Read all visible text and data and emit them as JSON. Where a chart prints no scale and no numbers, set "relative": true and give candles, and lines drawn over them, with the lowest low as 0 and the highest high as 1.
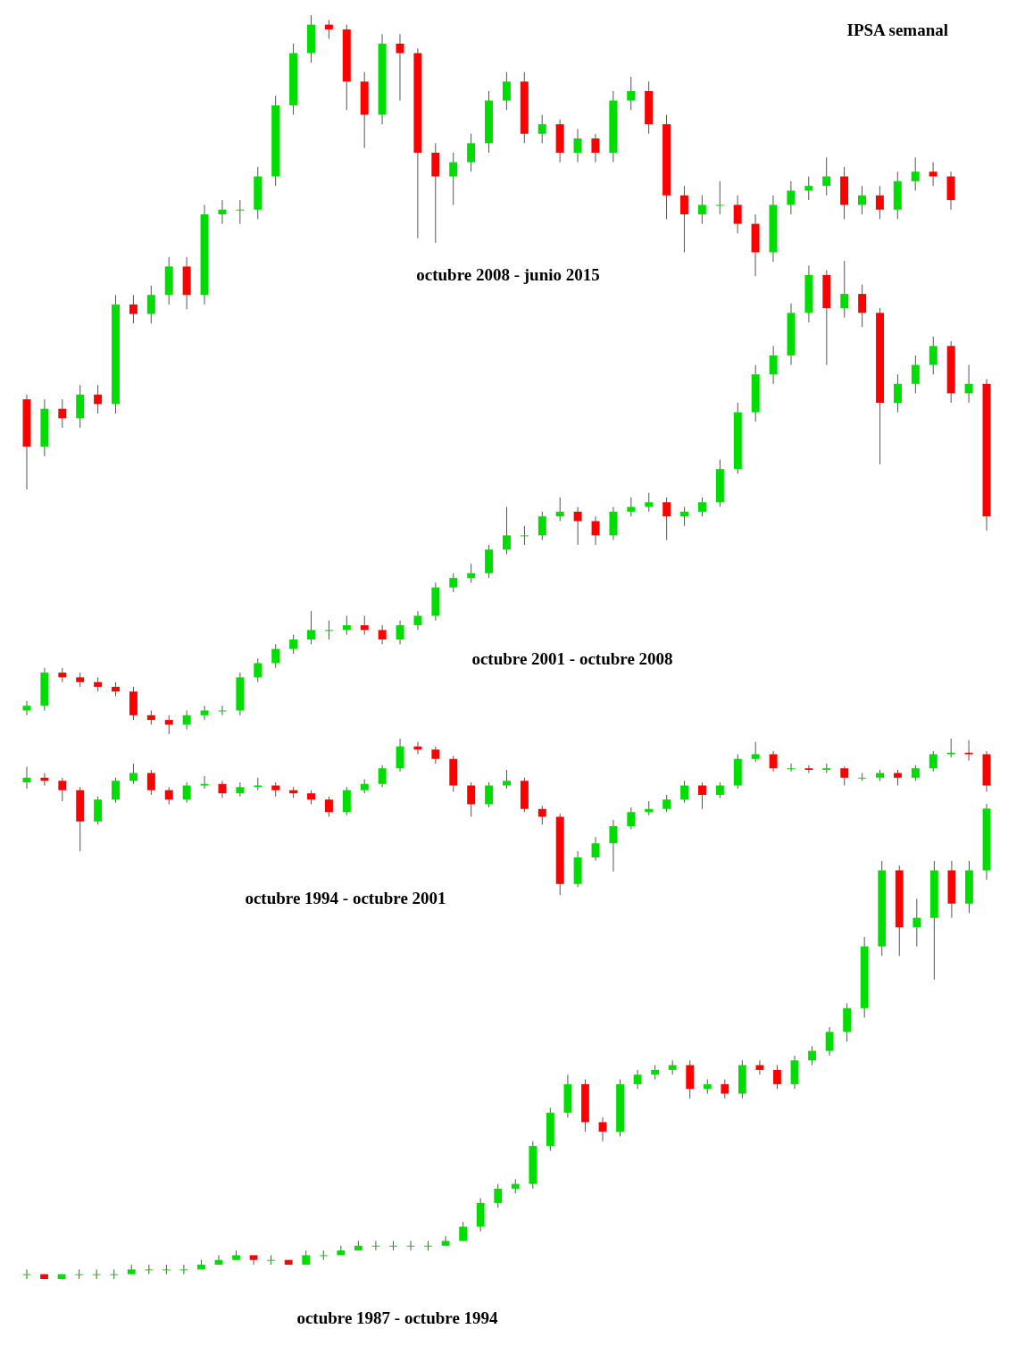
{
  "chart_data": [
    {
      "type": "candlestick",
      "title": "octubre 2008 - junio 2015",
      "annotations": [
        "IPSA semanal"
      ],
      "relative": true,
      "ohlc": [
        [
          0.19,
          0.2,
          0.0,
          0.09
        ],
        [
          0.09,
          0.19,
          0.07,
          0.17
        ],
        [
          0.17,
          0.19,
          0.13,
          0.15
        ],
        [
          0.15,
          0.22,
          0.13,
          0.2
        ],
        [
          0.2,
          0.22,
          0.16,
          0.18
        ],
        [
          0.18,
          0.41,
          0.16,
          0.39
        ],
        [
          0.39,
          0.41,
          0.35,
          0.37
        ],
        [
          0.37,
          0.43,
          0.35,
          0.41
        ],
        [
          0.41,
          0.49,
          0.39,
          0.47
        ],
        [
          0.47,
          0.49,
          0.38,
          0.41
        ],
        [
          0.41,
          0.6,
          0.39,
          0.58
        ],
        [
          0.58,
          0.61,
          0.56,
          0.59
        ],
        [
          0.59,
          0.61,
          0.56,
          0.59
        ],
        [
          0.59,
          0.68,
          0.57,
          0.66
        ],
        [
          0.66,
          0.83,
          0.64,
          0.81
        ],
        [
          0.81,
          0.94,
          0.79,
          0.92
        ],
        [
          0.92,
          1.0,
          0.9,
          0.98
        ],
        [
          0.98,
          0.99,
          0.95,
          0.97
        ],
        [
          0.97,
          0.98,
          0.8,
          0.86
        ],
        [
          0.86,
          0.88,
          0.72,
          0.79
        ],
        [
          0.79,
          0.96,
          0.77,
          0.94
        ],
        [
          0.94,
          0.96,
          0.82,
          0.92
        ],
        [
          0.92,
          0.93,
          0.53,
          0.71
        ],
        [
          0.71,
          0.73,
          0.52,
          0.66
        ],
        [
          0.66,
          0.71,
          0.6,
          0.69
        ],
        [
          0.69,
          0.75,
          0.67,
          0.73
        ],
        [
          0.73,
          0.84,
          0.71,
          0.82
        ],
        [
          0.82,
          0.88,
          0.8,
          0.86
        ],
        [
          0.86,
          0.88,
          0.73,
          0.75
        ],
        [
          0.75,
          0.79,
          0.73,
          0.77
        ],
        [
          0.77,
          0.78,
          0.69,
          0.71
        ],
        [
          0.71,
          0.76,
          0.69,
          0.74
        ],
        [
          0.74,
          0.75,
          0.69,
          0.71
        ],
        [
          0.71,
          0.84,
          0.69,
          0.82
        ],
        [
          0.82,
          0.87,
          0.8,
          0.84
        ],
        [
          0.84,
          0.86,
          0.75,
          0.77
        ],
        [
          0.77,
          0.79,
          0.57,
          0.62
        ],
        [
          0.62,
          0.64,
          0.5,
          0.58
        ],
        [
          0.58,
          0.62,
          0.56,
          0.6
        ],
        [
          0.6,
          0.65,
          0.58,
          0.6
        ],
        [
          0.6,
          0.62,
          0.54,
          0.56
        ],
        [
          0.56,
          0.58,
          0.45,
          0.5
        ],
        [
          0.5,
          0.62,
          0.48,
          0.6
        ],
        [
          0.6,
          0.65,
          0.58,
          0.63
        ],
        [
          0.63,
          0.66,
          0.61,
          0.64
        ],
        [
          0.64,
          0.7,
          0.62,
          0.66
        ],
        [
          0.66,
          0.68,
          0.57,
          0.6
        ],
        [
          0.6,
          0.64,
          0.58,
          0.62
        ],
        [
          0.62,
          0.64,
          0.57,
          0.59
        ],
        [
          0.59,
          0.67,
          0.57,
          0.65
        ],
        [
          0.65,
          0.7,
          0.63,
          0.67
        ],
        [
          0.67,
          0.69,
          0.64,
          0.66
        ],
        [
          0.66,
          0.67,
          0.59,
          0.61
        ]
      ]
    },
    {
      "type": "candlestick",
      "title": "octubre 2001 - octubre 2008",
      "relative": true,
      "ohlc": [
        [
          0.05,
          0.07,
          0.04,
          0.06
        ],
        [
          0.06,
          0.14,
          0.05,
          0.13
        ],
        [
          0.13,
          0.14,
          0.11,
          0.12
        ],
        [
          0.12,
          0.13,
          0.1,
          0.11
        ],
        [
          0.11,
          0.12,
          0.09,
          0.1
        ],
        [
          0.1,
          0.11,
          0.08,
          0.09
        ],
        [
          0.09,
          0.1,
          0.03,
          0.04
        ],
        [
          0.04,
          0.05,
          0.02,
          0.03
        ],
        [
          0.03,
          0.04,
          0.0,
          0.02
        ],
        [
          0.02,
          0.05,
          0.01,
          0.04
        ],
        [
          0.04,
          0.06,
          0.03,
          0.05
        ],
        [
          0.05,
          0.06,
          0.04,
          0.05
        ],
        [
          0.05,
          0.13,
          0.04,
          0.12
        ],
        [
          0.12,
          0.16,
          0.11,
          0.15
        ],
        [
          0.15,
          0.19,
          0.14,
          0.18
        ],
        [
          0.18,
          0.21,
          0.17,
          0.2
        ],
        [
          0.2,
          0.26,
          0.19,
          0.22
        ],
        [
          0.22,
          0.24,
          0.2,
          0.22
        ],
        [
          0.22,
          0.25,
          0.21,
          0.23
        ],
        [
          0.23,
          0.25,
          0.21,
          0.22
        ],
        [
          0.22,
          0.23,
          0.19,
          0.2
        ],
        [
          0.2,
          0.24,
          0.19,
          0.23
        ],
        [
          0.23,
          0.26,
          0.22,
          0.25
        ],
        [
          0.25,
          0.32,
          0.24,
          0.31
        ],
        [
          0.31,
          0.34,
          0.3,
          0.33
        ],
        [
          0.33,
          0.36,
          0.32,
          0.34
        ],
        [
          0.34,
          0.4,
          0.33,
          0.39
        ],
        [
          0.39,
          0.48,
          0.38,
          0.42
        ],
        [
          0.42,
          0.44,
          0.4,
          0.42
        ],
        [
          0.42,
          0.47,
          0.41,
          0.46
        ],
        [
          0.46,
          0.5,
          0.45,
          0.47
        ],
        [
          0.47,
          0.48,
          0.4,
          0.45
        ],
        [
          0.45,
          0.46,
          0.4,
          0.42
        ],
        [
          0.42,
          0.48,
          0.41,
          0.47
        ],
        [
          0.47,
          0.5,
          0.46,
          0.48
        ],
        [
          0.48,
          0.51,
          0.47,
          0.49
        ],
        [
          0.49,
          0.5,
          0.41,
          0.46
        ],
        [
          0.46,
          0.48,
          0.44,
          0.47
        ],
        [
          0.47,
          0.5,
          0.46,
          0.49
        ],
        [
          0.49,
          0.58,
          0.48,
          0.56
        ],
        [
          0.56,
          0.7,
          0.55,
          0.68
        ],
        [
          0.68,
          0.78,
          0.66,
          0.76
        ],
        [
          0.76,
          0.82,
          0.74,
          0.8
        ],
        [
          0.8,
          0.91,
          0.78,
          0.89
        ],
        [
          0.89,
          0.99,
          0.87,
          0.97
        ],
        [
          0.97,
          0.98,
          0.78,
          0.9
        ],
        [
          0.9,
          1.0,
          0.88,
          0.93
        ],
        [
          0.93,
          0.95,
          0.86,
          0.89
        ],
        [
          0.89,
          0.9,
          0.57,
          0.7
        ],
        [
          0.7,
          0.76,
          0.68,
          0.74
        ],
        [
          0.74,
          0.8,
          0.72,
          0.78
        ],
        [
          0.78,
          0.84,
          0.76,
          0.82
        ],
        [
          0.82,
          0.83,
          0.7,
          0.72
        ],
        [
          0.72,
          0.78,
          0.7,
          0.74
        ],
        [
          0.74,
          0.75,
          0.43,
          0.46
        ]
      ]
    },
    {
      "type": "candlestick",
      "title": "octubre 1994 - octubre 2001",
      "relative": true,
      "ohlc": [
        [
          0.72,
          0.82,
          0.68,
          0.75
        ],
        [
          0.75,
          0.78,
          0.7,
          0.73
        ],
        [
          0.73,
          0.75,
          0.6,
          0.67
        ],
        [
          0.67,
          0.69,
          0.28,
          0.47
        ],
        [
          0.47,
          0.63,
          0.45,
          0.61
        ],
        [
          0.61,
          0.75,
          0.59,
          0.73
        ],
        [
          0.73,
          0.84,
          0.71,
          0.78
        ],
        [
          0.78,
          0.8,
          0.64,
          0.67
        ],
        [
          0.67,
          0.69,
          0.58,
          0.61
        ],
        [
          0.61,
          0.72,
          0.59,
          0.7
        ],
        [
          0.7,
          0.76,
          0.68,
          0.71
        ],
        [
          0.71,
          0.73,
          0.62,
          0.65
        ],
        [
          0.65,
          0.72,
          0.63,
          0.69
        ],
        [
          0.69,
          0.75,
          0.67,
          0.7
        ],
        [
          0.7,
          0.72,
          0.63,
          0.67
        ],
        [
          0.67,
          0.69,
          0.62,
          0.65
        ],
        [
          0.65,
          0.67,
          0.58,
          0.61
        ],
        [
          0.61,
          0.63,
          0.5,
          0.53
        ],
        [
          0.53,
          0.69,
          0.51,
          0.67
        ],
        [
          0.67,
          0.74,
          0.65,
          0.71
        ],
        [
          0.71,
          0.83,
          0.69,
          0.81
        ],
        [
          0.81,
          1.0,
          0.79,
          0.95
        ],
        [
          0.95,
          0.98,
          0.9,
          0.93
        ],
        [
          0.93,
          0.95,
          0.84,
          0.87
        ],
        [
          0.87,
          0.89,
          0.66,
          0.7
        ],
        [
          0.7,
          0.72,
          0.5,
          0.58
        ],
        [
          0.58,
          0.72,
          0.56,
          0.7
        ],
        [
          0.7,
          0.8,
          0.68,
          0.73
        ],
        [
          0.73,
          0.75,
          0.53,
          0.55
        ],
        [
          0.55,
          0.57,
          0.45,
          0.5
        ],
        [
          0.5,
          0.52,
          0.0,
          0.07
        ],
        [
          0.07,
          0.28,
          0.05,
          0.24
        ],
        [
          0.24,
          0.37,
          0.22,
          0.33
        ],
        [
          0.33,
          0.48,
          0.15,
          0.44
        ],
        [
          0.44,
          0.56,
          0.42,
          0.53
        ],
        [
          0.53,
          0.6,
          0.51,
          0.55
        ],
        [
          0.55,
          0.64,
          0.53,
          0.61
        ],
        [
          0.61,
          0.73,
          0.59,
          0.7
        ],
        [
          0.7,
          0.72,
          0.55,
          0.64
        ],
        [
          0.64,
          0.72,
          0.62,
          0.7
        ],
        [
          0.7,
          0.9,
          0.68,
          0.87
        ],
        [
          0.87,
          0.98,
          0.85,
          0.9
        ],
        [
          0.9,
          0.92,
          0.79,
          0.81
        ],
        [
          0.81,
          0.84,
          0.79,
          0.81
        ],
        [
          0.81,
          0.83,
          0.78,
          0.8
        ],
        [
          0.8,
          0.84,
          0.78,
          0.81
        ],
        [
          0.81,
          0.82,
          0.7,
          0.75
        ],
        [
          0.75,
          0.78,
          0.73,
          0.75
        ],
        [
          0.75,
          0.8,
          0.73,
          0.78
        ],
        [
          0.78,
          0.8,
          0.7,
          0.75
        ],
        [
          0.75,
          0.83,
          0.73,
          0.81
        ],
        [
          0.81,
          0.92,
          0.79,
          0.9
        ],
        [
          0.9,
          1.0,
          0.88,
          0.91
        ],
        [
          0.91,
          0.99,
          0.86,
          0.9
        ],
        [
          0.9,
          0.92,
          0.66,
          0.7
        ]
      ]
    },
    {
      "type": "candlestick",
      "title": "octubre 1987 - octubre 1994",
      "relative": true,
      "ohlc": [
        [
          0.01,
          0.02,
          0.0,
          0.01
        ],
        [
          0.01,
          0.01,
          0.0,
          0.0
        ],
        [
          0.0,
          0.01,
          0.0,
          0.01
        ],
        [
          0.01,
          0.02,
          0.0,
          0.01
        ],
        [
          0.01,
          0.02,
          0.0,
          0.01
        ],
        [
          0.01,
          0.02,
          0.0,
          0.01
        ],
        [
          0.01,
          0.03,
          0.01,
          0.02
        ],
        [
          0.02,
          0.03,
          0.01,
          0.02
        ],
        [
          0.02,
          0.03,
          0.01,
          0.02
        ],
        [
          0.02,
          0.03,
          0.01,
          0.02
        ],
        [
          0.02,
          0.04,
          0.02,
          0.03
        ],
        [
          0.03,
          0.05,
          0.03,
          0.04
        ],
        [
          0.04,
          0.06,
          0.04,
          0.05
        ],
        [
          0.05,
          0.05,
          0.03,
          0.04
        ],
        [
          0.04,
          0.05,
          0.03,
          0.04
        ],
        [
          0.04,
          0.04,
          0.03,
          0.03
        ],
        [
          0.03,
          0.06,
          0.03,
          0.05
        ],
        [
          0.05,
          0.06,
          0.04,
          0.05
        ],
        [
          0.05,
          0.07,
          0.05,
          0.06
        ],
        [
          0.06,
          0.08,
          0.06,
          0.07
        ],
        [
          0.07,
          0.08,
          0.06,
          0.07
        ],
        [
          0.07,
          0.08,
          0.06,
          0.07
        ],
        [
          0.07,
          0.08,
          0.06,
          0.07
        ],
        [
          0.07,
          0.08,
          0.06,
          0.07
        ],
        [
          0.07,
          0.09,
          0.07,
          0.08
        ],
        [
          0.08,
          0.12,
          0.08,
          0.11
        ],
        [
          0.11,
          0.17,
          0.1,
          0.16
        ],
        [
          0.16,
          0.2,
          0.15,
          0.19
        ],
        [
          0.19,
          0.21,
          0.18,
          0.2
        ],
        [
          0.2,
          0.29,
          0.19,
          0.28
        ],
        [
          0.28,
          0.36,
          0.27,
          0.35
        ],
        [
          0.35,
          0.43,
          0.34,
          0.41
        ],
        [
          0.41,
          0.42,
          0.31,
          0.33
        ],
        [
          0.33,
          0.34,
          0.29,
          0.31
        ],
        [
          0.31,
          0.42,
          0.3,
          0.41
        ],
        [
          0.41,
          0.44,
          0.4,
          0.43
        ],
        [
          0.43,
          0.45,
          0.42,
          0.44
        ],
        [
          0.44,
          0.46,
          0.43,
          0.45
        ],
        [
          0.45,
          0.46,
          0.38,
          0.4
        ],
        [
          0.4,
          0.42,
          0.39,
          0.41
        ],
        [
          0.41,
          0.42,
          0.38,
          0.39
        ],
        [
          0.39,
          0.46,
          0.38,
          0.45
        ],
        [
          0.45,
          0.46,
          0.43,
          0.44
        ],
        [
          0.44,
          0.45,
          0.4,
          0.41
        ],
        [
          0.41,
          0.47,
          0.4,
          0.46
        ],
        [
          0.46,
          0.49,
          0.45,
          0.48
        ],
        [
          0.48,
          0.53,
          0.47,
          0.52
        ],
        [
          0.52,
          0.58,
          0.5,
          0.57
        ],
        [
          0.57,
          0.72,
          0.55,
          0.7
        ],
        [
          0.7,
          0.88,
          0.68,
          0.86
        ],
        [
          0.86,
          0.87,
          0.68,
          0.74
        ],
        [
          0.74,
          0.8,
          0.7,
          0.76
        ],
        [
          0.76,
          0.88,
          0.63,
          0.86
        ],
        [
          0.86,
          0.88,
          0.76,
          0.79
        ],
        [
          0.79,
          0.88,
          0.77,
          0.86
        ],
        [
          0.86,
          1.0,
          0.84,
          0.99
        ]
      ]
    }
  ]
}
